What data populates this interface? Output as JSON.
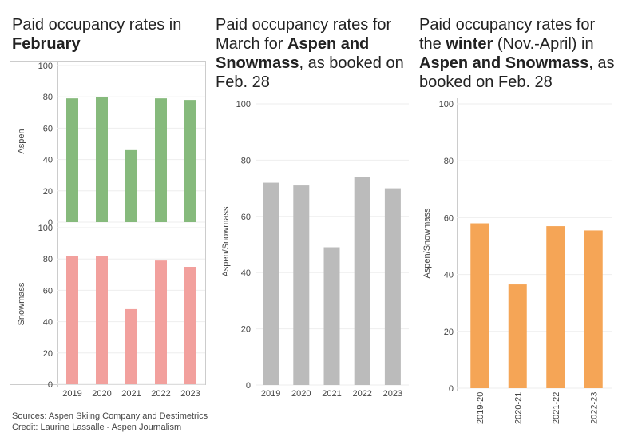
{
  "titles": {
    "t1": {
      "pre": "Paid occupancy rates in ",
      "bold": "February"
    },
    "t2": {
      "pre": "Paid occupancy rates for March for ",
      "bold": "Aspen and Snowmass",
      "post": ", as booked on Feb. 28"
    },
    "t3": {
      "pre": "Paid occupancy rates for the ",
      "bold1": "winter",
      "mid": " (Nov.-April) in ",
      "bold2": "Aspen and Snowmass",
      "post": ", as booked on Feb. 28"
    }
  },
  "footer": {
    "sources": "Sources: Aspen Skiing Company and Destimetrics",
    "credit": "Credit: Laurine Lassalle - Aspen Journalism"
  },
  "colors": {
    "green": "#86BA7C",
    "red": "#F2A09D",
    "gray": "#BBBBBB",
    "orange": "#F5A556"
  },
  "chart_data": [
    {
      "type": "bar",
      "title": "Paid occupancy rates in February",
      "ylabel": "Aspen",
      "categories": [
        "2019",
        "2020",
        "2021",
        "2022",
        "2023"
      ],
      "values": [
        79,
        80,
        46,
        79,
        78
      ],
      "ylim": [
        0,
        100
      ],
      "yticks": [
        0,
        20,
        40,
        60,
        80,
        100
      ]
    },
    {
      "type": "bar",
      "title": "Paid occupancy rates in February",
      "ylabel": "Snowmass",
      "categories": [
        "2019",
        "2020",
        "2021",
        "2022",
        "2023"
      ],
      "values": [
        82,
        82,
        48,
        79,
        75
      ],
      "ylim": [
        0,
        100
      ],
      "yticks": [
        0,
        20,
        40,
        60,
        80,
        100
      ]
    },
    {
      "type": "bar",
      "title": "Paid occupancy rates for March for Aspen and Snowmass, as booked on Feb. 28",
      "ylabel": "Aspen/Snowmass",
      "categories": [
        "2019",
        "2020",
        "2021",
        "2022",
        "2023"
      ],
      "values": [
        72,
        71,
        49,
        74,
        70
      ],
      "ylim": [
        0,
        100
      ],
      "yticks": [
        0,
        20,
        40,
        60,
        80,
        100
      ]
    },
    {
      "type": "bar",
      "title": "Paid occupancy rates for the winter (Nov.-April) in Aspen and Snowmass, as booked on Feb. 28",
      "ylabel": "Aspen/Snowmass",
      "categories": [
        "2019-20",
        "2020-21",
        "2021-22",
        "2022-23"
      ],
      "values": [
        58,
        36.5,
        57,
        55.5
      ],
      "ylim": [
        0,
        100
      ],
      "yticks": [
        0,
        20,
        40,
        60,
        80,
        100
      ]
    }
  ]
}
